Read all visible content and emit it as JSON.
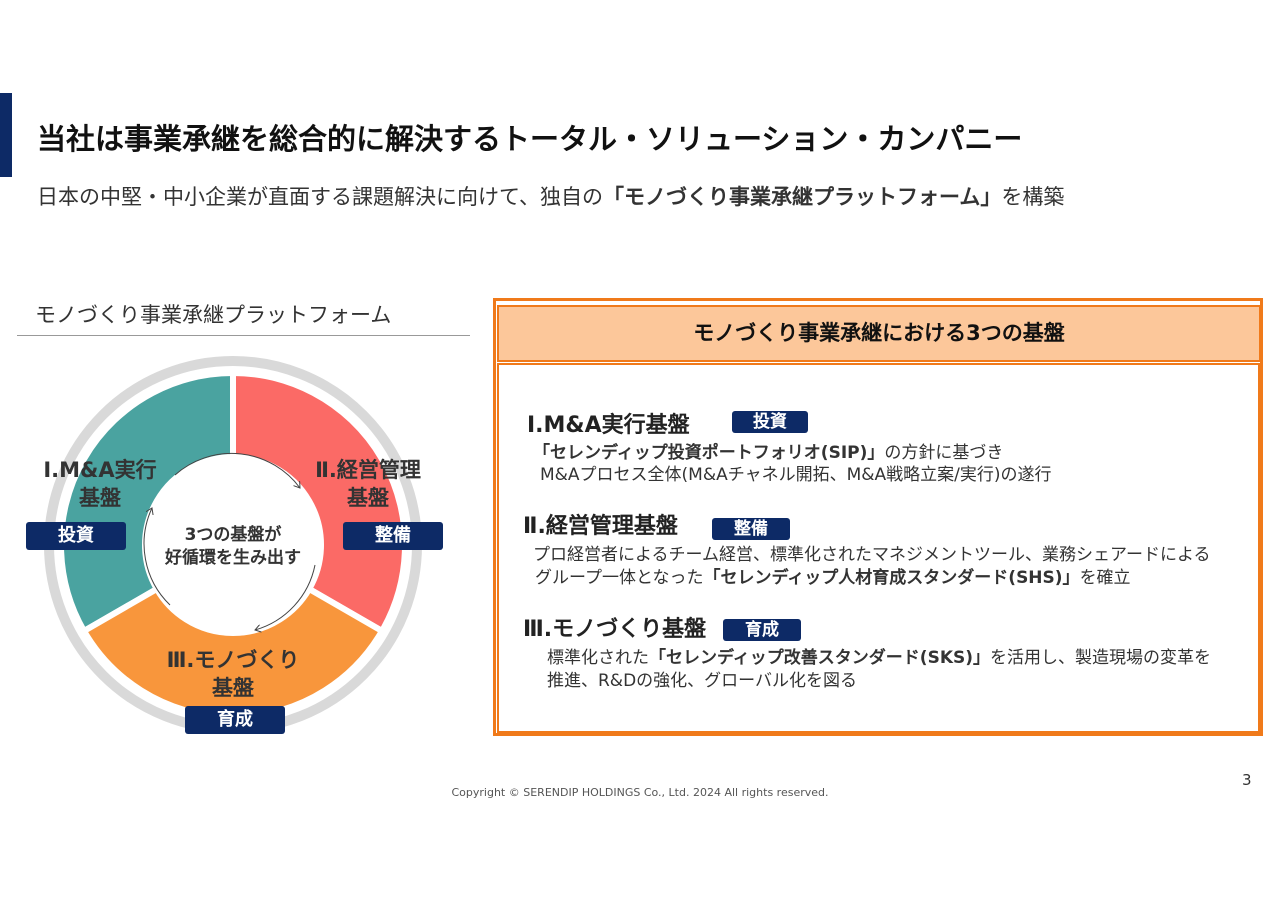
{
  "header": {
    "title": "当社は事業承継を総合的に解決するトータル・ソリューション・カンパニー",
    "subtitle_parts": [
      {
        "text": "日本の中堅・中小企業が直面する課題解決に向けて、独自の",
        "bold": false
      },
      {
        "text": "「モノづくり事業承継プラットフォーム」",
        "bold": true
      },
      {
        "text": "を構築",
        "bold": false
      }
    ]
  },
  "platform": {
    "title": "モノづくり事業承継プラットフォーム",
    "segments": [
      {
        "label_lines": [
          "Ⅰ.M&A実行",
          "基盤"
        ],
        "tag": "投資"
      },
      {
        "label_lines": [
          "Ⅱ.経営管理",
          "基盤"
        ],
        "tag": "整備"
      },
      {
        "label_lines": [
          "Ⅲ.モノづくり",
          "基盤"
        ],
        "tag": "育成"
      }
    ],
    "center_lines": [
      "3つの基盤が",
      "好循環を生み出す"
    ]
  },
  "foundations": {
    "title": "モノづくり事業承継における3つの基盤",
    "items": [
      {
        "heading": "Ⅰ.M&A実行基盤",
        "tag": "投資",
        "lines": [
          [
            {
              "text": "「セレンディップ投資ポートフォリオ(SIP)」",
              "bold": true
            },
            {
              "text": "の方針に基づき",
              "bold": false
            }
          ],
          [
            {
              "text": "M&Aプロセス全体(M&Aチャネル開拓、M&A戦略立案/実行)の遂行",
              "bold": false
            }
          ]
        ]
      },
      {
        "heading": "Ⅱ.経営管理基盤",
        "tag": "整備",
        "lines": [
          [
            {
              "text": "プロ経営者によるチーム経営、標準化されたマネジメントツール、業務シェアードによる",
              "bold": false
            }
          ],
          [
            {
              "text": "グループ一体となった",
              "bold": false
            },
            {
              "text": "「セレンディップ人材育成スタンダード(SHS)」",
              "bold": true
            },
            {
              "text": "を確立",
              "bold": false
            }
          ]
        ]
      },
      {
        "heading": "Ⅲ.モノづくり基盤",
        "tag": "育成",
        "lines": [
          [
            {
              "text": "標準化された",
              "bold": false
            },
            {
              "text": "「セレンディップ改善スタンダード(SKS)」",
              "bold": true
            },
            {
              "text": "を活用し、製造現場の変革を",
              "bold": false
            }
          ],
          [
            {
              "text": "推進、R&Dの強化、グローバル化を図る",
              "bold": false
            }
          ]
        ]
      }
    ]
  },
  "footer": {
    "copyright": "Copyright © SERENDIP HOLDINGS Co., Ltd.  2024 All rights reserved.",
    "page": "3"
  }
}
